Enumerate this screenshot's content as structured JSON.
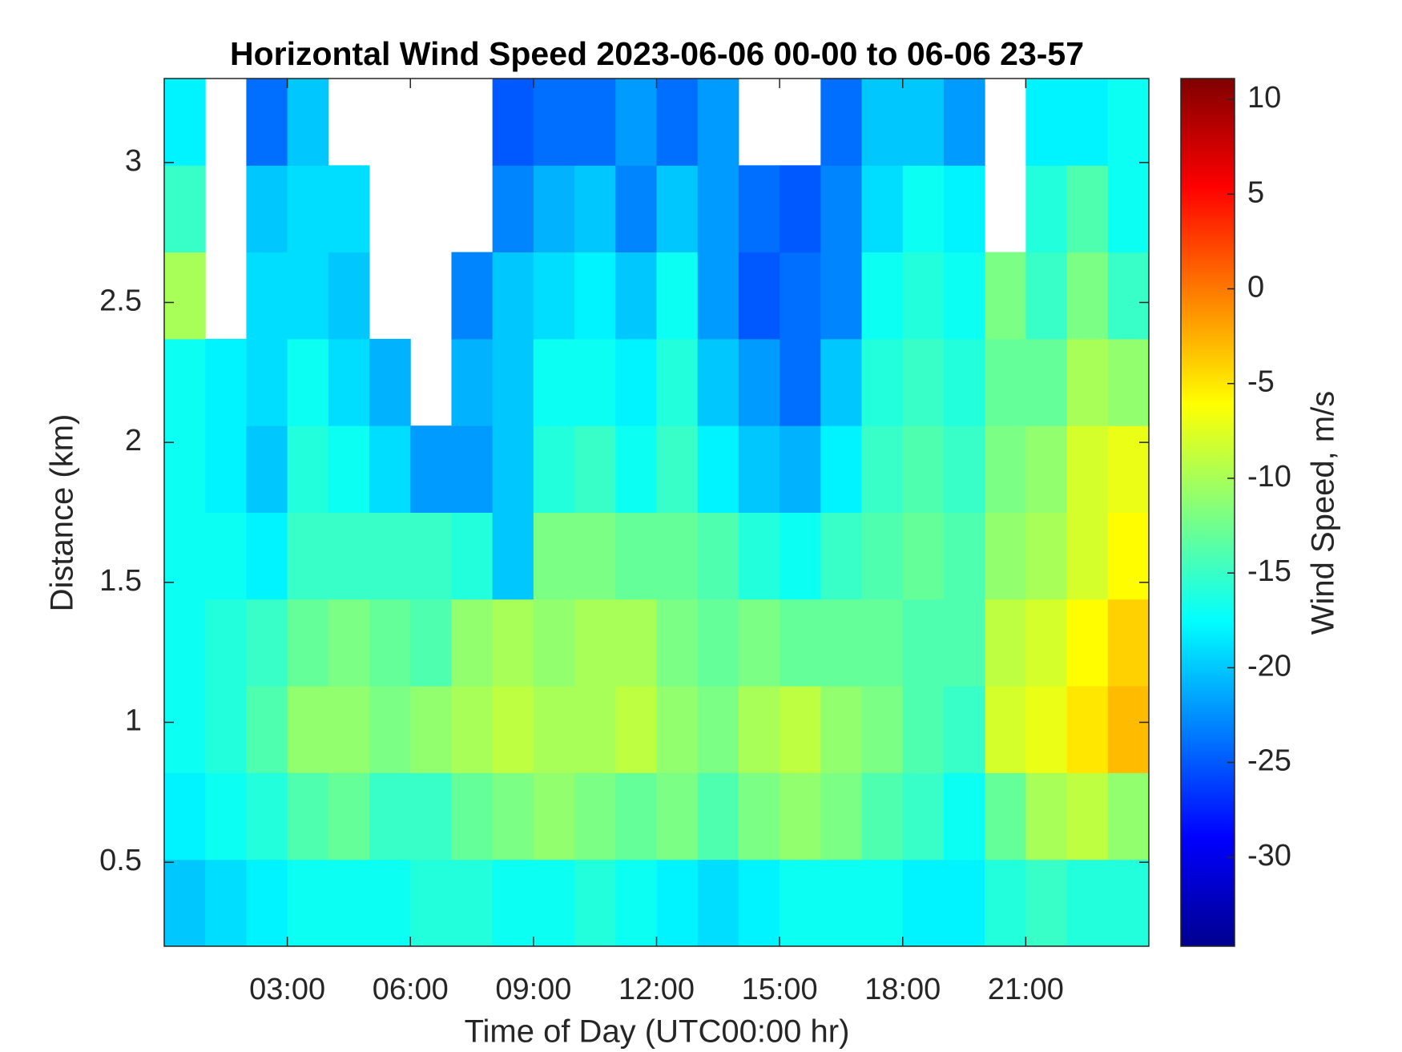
{
  "chart_data": {
    "type": "heatmap",
    "title": "Horizontal Wind Speed 2023-06-06 00-00 to 06-06 23-57",
    "x_label": "Time of Day (UTC00:00 hr)",
    "y_label": "Distance (km)",
    "colorbar_label": "Wind Speed, m/s",
    "colormap": "jet",
    "x": [
      0.5,
      1.5,
      2.5,
      3.5,
      4.5,
      5.5,
      6.5,
      7.5,
      8.5,
      9.5,
      10.5,
      11.5,
      12.5,
      13.5,
      14.5,
      15.5,
      16.5,
      17.5,
      18.5,
      19.5,
      20.5,
      21.5,
      22.5,
      23.5
    ],
    "y": [
      0.355,
      0.665,
      0.975,
      1.285,
      1.595,
      1.905,
      2.215,
      2.525,
      2.835,
      3.145
    ],
    "z": [
      [
        -20,
        -19,
        -18,
        -17,
        -17,
        -17,
        -16,
        -16,
        -17,
        -17,
        -16,
        -17,
        -18,
        -19,
        -18,
        -17,
        -17,
        -17,
        -18,
        -18,
        -16,
        -15,
        -16,
        -16
      ],
      [
        -18,
        -17,
        -16,
        -14,
        -13,
        -15,
        -15,
        -13,
        -12,
        -11,
        -12,
        -13,
        -12,
        -14,
        -12,
        -11,
        -12,
        -14,
        -15,
        -17,
        -13,
        -10,
        -9,
        -11
      ],
      [
        -17,
        -16,
        -14,
        -11,
        -11,
        -12,
        -11,
        -10,
        -9,
        -10,
        -10,
        -9,
        -11,
        -12,
        -10,
        -9,
        -11,
        -12,
        -14,
        -15,
        -8,
        -7,
        -5,
        -3
      ],
      [
        -17,
        -16,
        -15,
        -13,
        -12,
        -13,
        -14,
        -11,
        -10,
        -11,
        -10,
        -10,
        -12,
        -13,
        -12,
        -13,
        -13,
        -13,
        -14,
        -14,
        -9,
        -8,
        -6,
        -4
      ],
      [
        -17,
        -17,
        -18,
        -15,
        -15,
        -15,
        -15,
        -16,
        -20,
        -12,
        -12,
        -13,
        -13,
        -14,
        -16,
        -17,
        -15,
        -14,
        -13,
        -14,
        -11,
        -10,
        -8,
        -6
      ],
      [
        -17,
        -18,
        -20,
        -16,
        -17,
        -19,
        -22,
        -22,
        -20,
        -16,
        -15,
        -17,
        -15,
        -18,
        -20,
        -21,
        -18,
        -15,
        -14,
        -15,
        -12,
        -11,
        -8,
        -7
      ],
      [
        -17,
        -18,
        -19,
        -17,
        -19,
        -21,
        null,
        -21,
        -20,
        -17,
        -17,
        -18,
        -16,
        -20,
        -22,
        -24,
        -20,
        -16,
        -15,
        -16,
        -13,
        -13,
        -10,
        -11
      ],
      [
        -10,
        null,
        -19,
        -19,
        -20,
        null,
        null,
        -23,
        -20,
        -19,
        -18,
        -20,
        -17,
        -22,
        -25,
        -24,
        -23,
        -17,
        -16,
        -17,
        -12,
        -15,
        -12,
        -15
      ],
      [
        -15,
        null,
        -20,
        -19,
        -19,
        null,
        null,
        null,
        -23,
        -21,
        -20,
        -23,
        -20,
        -22,
        -24,
        -25,
        -23,
        -19,
        -17,
        -18,
        null,
        -16,
        -14,
        -17
      ],
      [
        -18,
        null,
        -24,
        -20,
        null,
        null,
        null,
        null,
        -25,
        -24,
        -24,
        -22,
        -24,
        -22,
        null,
        null,
        -24,
        -20,
        -20,
        -22,
        null,
        -18,
        -18,
        -17
      ]
    ],
    "xlim": [
      0,
      24
    ],
    "xticks": [
      {
        "value": 3,
        "label": "03:00"
      },
      {
        "value": 6,
        "label": "06:00"
      },
      {
        "value": 9,
        "label": "09:00"
      },
      {
        "value": 12,
        "label": "12:00"
      },
      {
        "value": 15,
        "label": "15:00"
      },
      {
        "value": 18,
        "label": "18:00"
      },
      {
        "value": 21,
        "label": "21:00"
      }
    ],
    "ylim": [
      0.2,
      3.3
    ],
    "yticks": [
      0.5,
      1,
      1.5,
      2,
      2.5,
      3
    ],
    "clim": [
      -34.7,
      11.1
    ],
    "cticks": [
      -30,
      -25,
      -20,
      -15,
      -10,
      -5,
      0,
      5,
      10
    ]
  }
}
